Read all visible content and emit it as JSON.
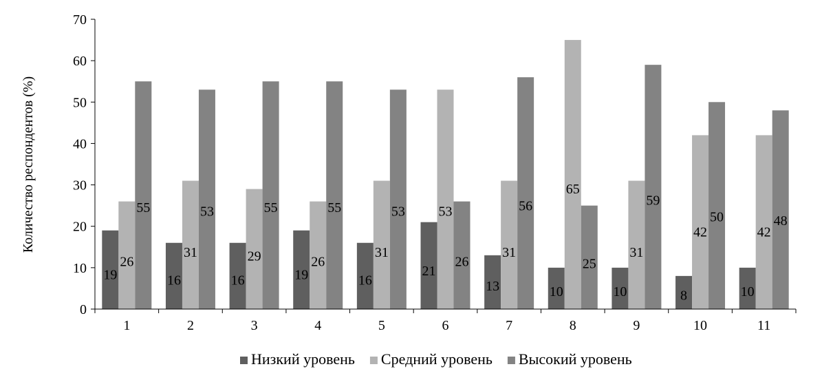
{
  "chart_data": {
    "type": "bar",
    "title": "",
    "xlabel": "",
    "ylabel": "Количество респондентов (%)",
    "ylim": [
      0,
      70
    ],
    "yticks": [
      0,
      10,
      20,
      30,
      40,
      50,
      60,
      70
    ],
    "grid": false,
    "legend_position": "bottom",
    "categories": [
      "1",
      "2",
      "3",
      "4",
      "5",
      "6",
      "7",
      "8",
      "9",
      "10",
      "11"
    ],
    "series": [
      {
        "name": "Низкий уровень",
        "color": "#5f5f5f",
        "values": [
          19,
          16,
          16,
          19,
          16,
          21,
          13,
          10,
          10,
          8,
          10
        ]
      },
      {
        "name": "Средний уровень",
        "color": "#b3b3b3",
        "values": [
          26,
          31,
          29,
          26,
          31,
          53,
          31,
          65,
          31,
          42,
          42
        ]
      },
      {
        "name": "Высокий уровень",
        "color": "#838383",
        "values": [
          55,
          53,
          55,
          55,
          53,
          26,
          56,
          25,
          59,
          50,
          48
        ]
      }
    ]
  }
}
